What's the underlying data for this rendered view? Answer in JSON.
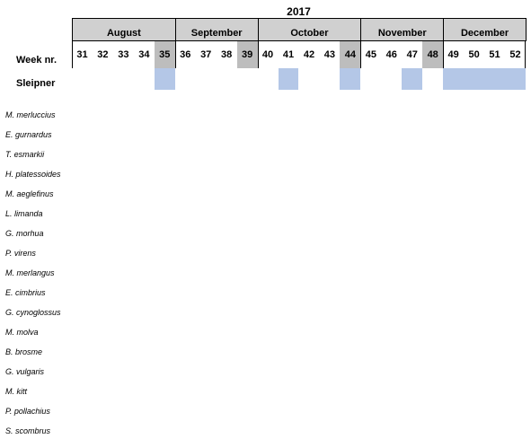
{
  "year": "2017",
  "row_header_week": "Week nr.",
  "row_header_site": "Sleipner",
  "months": [
    {
      "name": "August",
      "weeks": [
        31,
        32,
        33,
        34,
        35
      ]
    },
    {
      "name": "September",
      "weeks": [
        36,
        37,
        38,
        39
      ]
    },
    {
      "name": "October",
      "weeks": [
        40,
        41,
        42,
        43,
        44
      ]
    },
    {
      "name": "November",
      "weeks": [
        45,
        46,
        47,
        48
      ]
    },
    {
      "name": "December",
      "weeks": [
        49,
        50,
        51,
        52
      ]
    }
  ],
  "week_labels": [
    "31",
    "32",
    "33",
    "34",
    "35",
    "36",
    "37",
    "38",
    "39",
    "40",
    "41",
    "42",
    "43",
    "44",
    "45",
    "46",
    "47",
    "48",
    "49",
    "50",
    "51",
    "52"
  ],
  "shaded_weeks": [
    "35",
    "39",
    "44",
    "48"
  ],
  "sleipner_sampled_weeks": [
    "35",
    "41",
    "44",
    "47",
    "49",
    "50",
    "51",
    "52"
  ],
  "colors": {
    "shade": "#bdbdbd",
    "month_bg": "#d0d0d0",
    "sample": "#b4c7e7"
  },
  "species": [
    "M. merluccius",
    "E. gurnardus",
    "T. esmarkii",
    "H. platessoides",
    "M. aeglefinus",
    "L. limanda",
    "G. morhua",
    "P. virens",
    "M. merlangus",
    "E. cimbrius",
    "G. cynoglossus",
    "M. molva",
    "B. brosme",
    "G. vulgaris",
    "M. kitt",
    "P. pollachius",
    "S. scombrus"
  ]
}
